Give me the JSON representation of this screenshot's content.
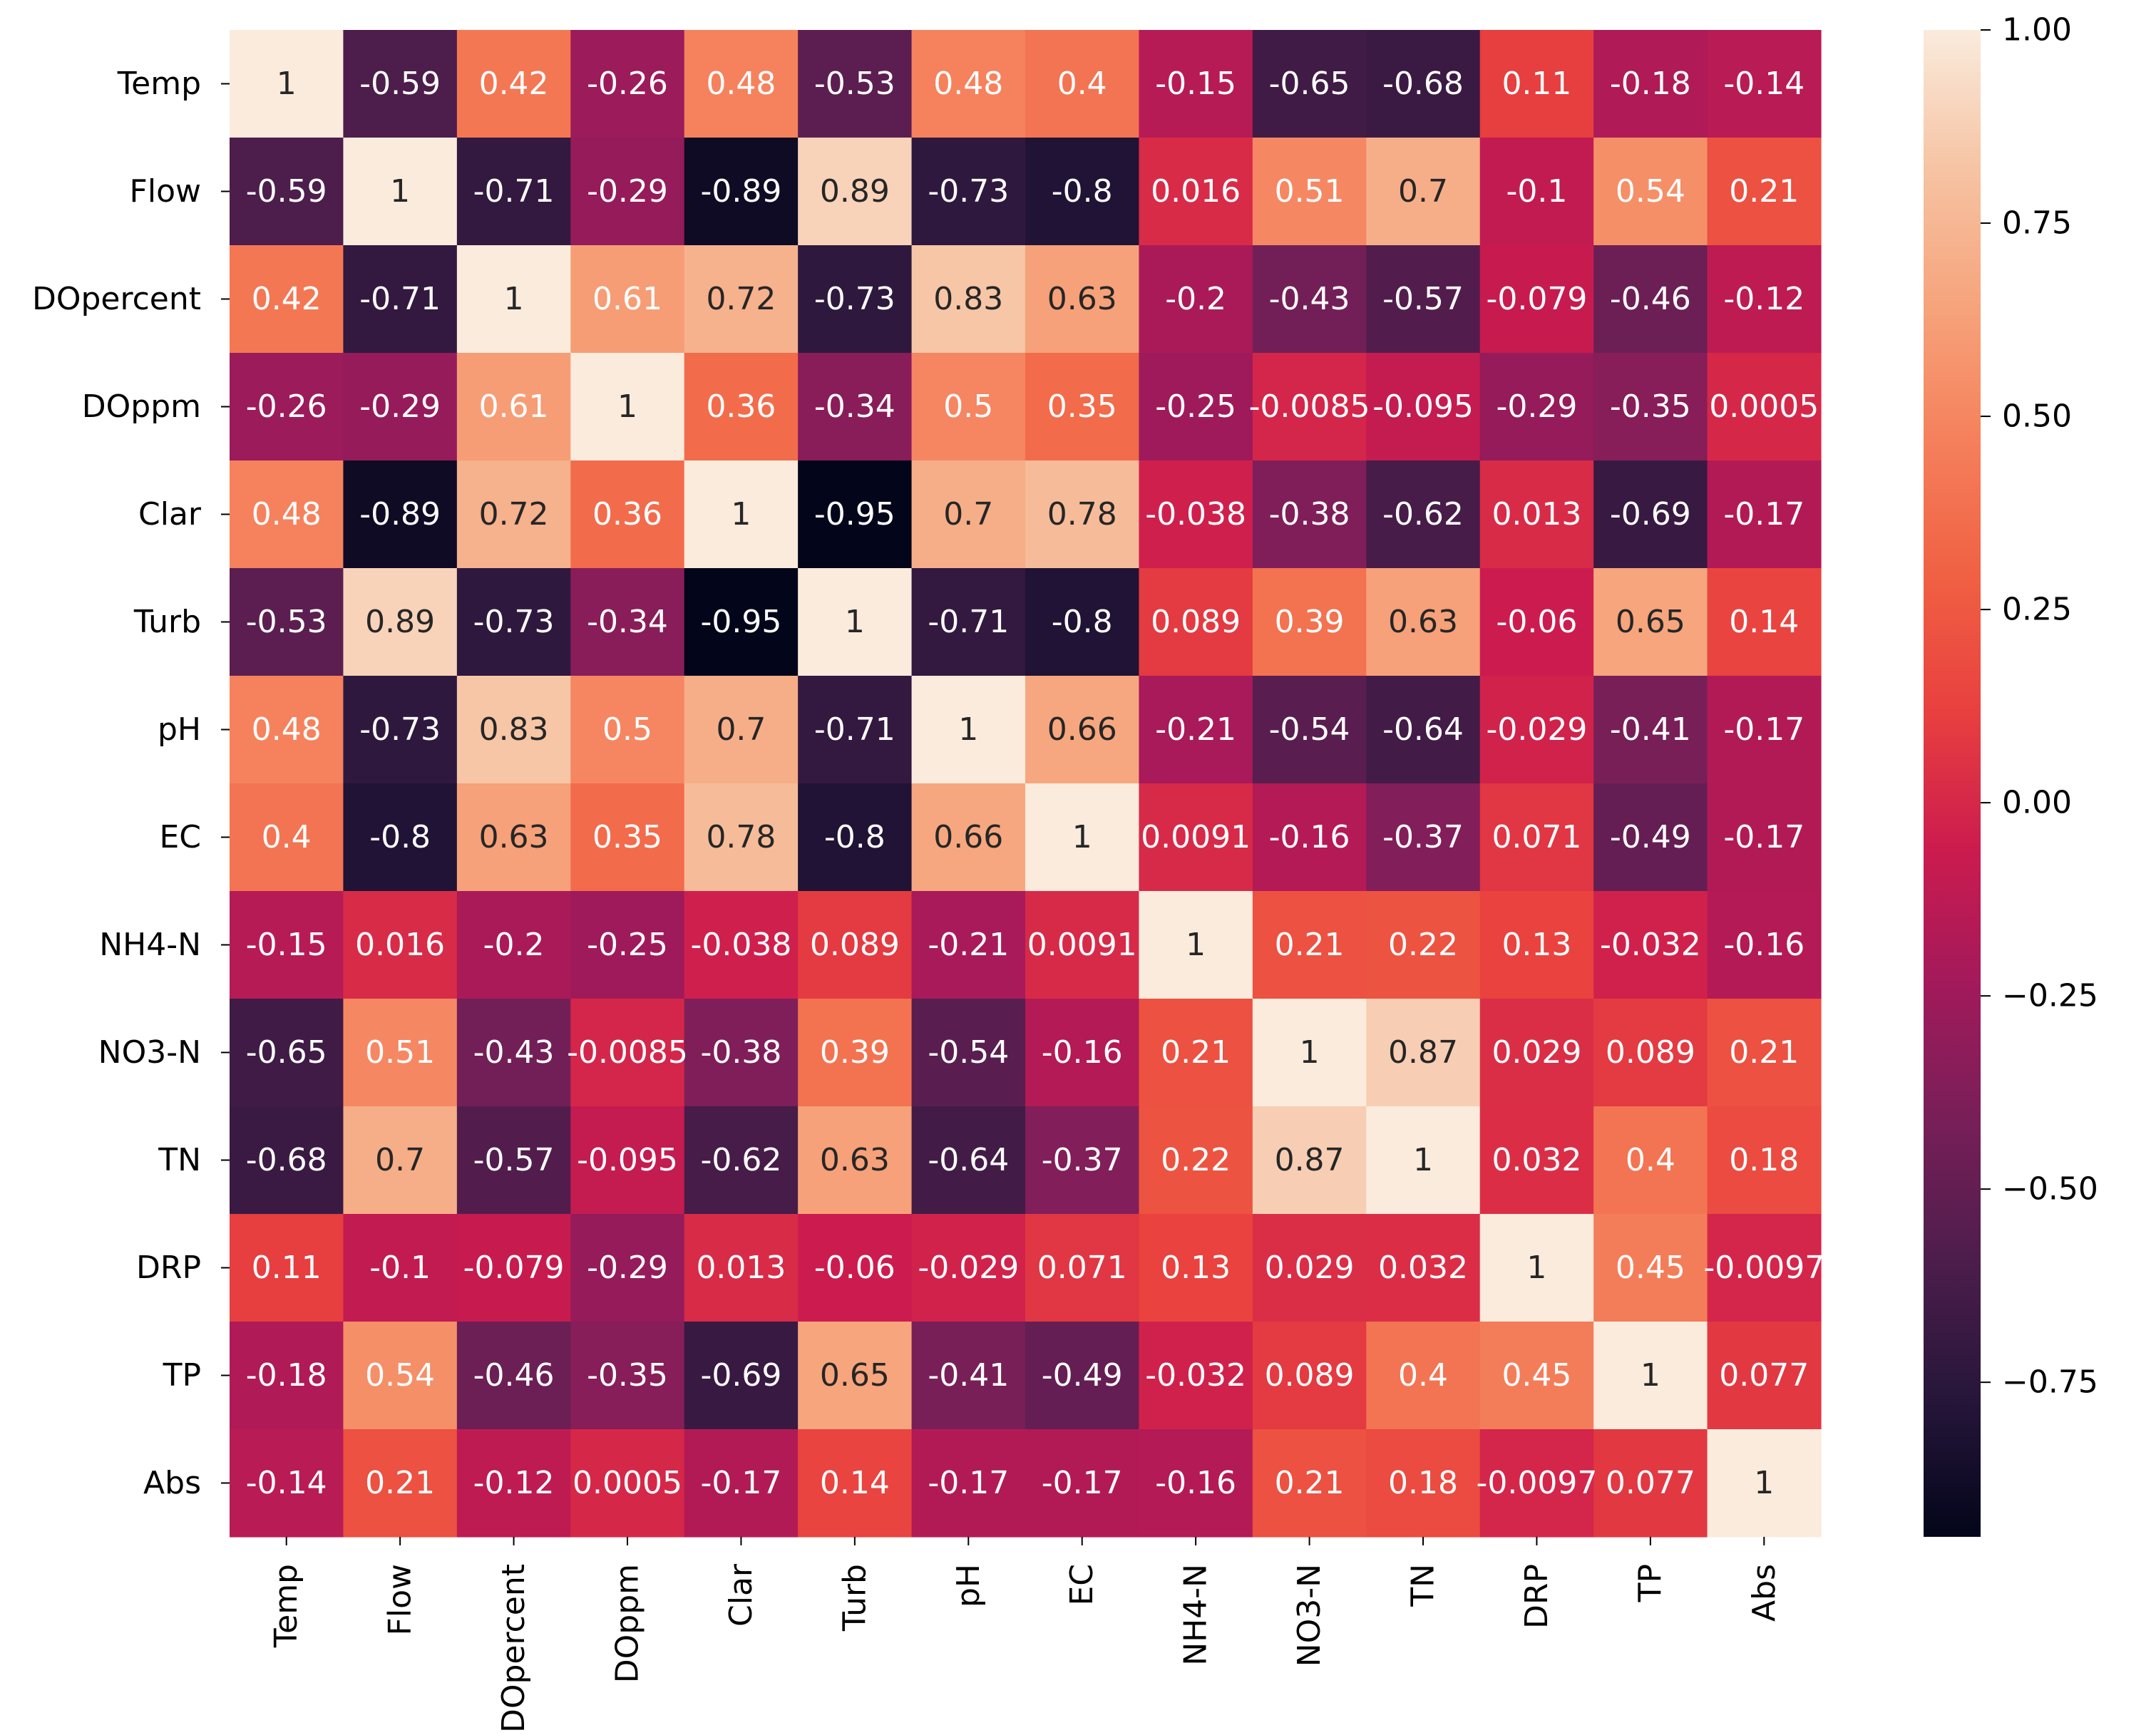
{
  "chart_data": {
    "type": "heatmap",
    "title": "",
    "xlabel": "",
    "ylabel": "",
    "variables": [
      "Temp",
      "Flow",
      "DOpercent",
      "DOppm",
      "Clar",
      "Turb",
      "pH",
      "EC",
      "NH4-N",
      "NO3-N",
      "TN",
      "DRP",
      "TP",
      "Abs"
    ],
    "row_labels": [
      "Temp",
      "Flow",
      "DOpercent",
      "DOppm",
      "Clar",
      "Turb",
      "pH",
      "EC",
      "NH4-N",
      "NO3-N",
      "TN",
      "DRP",
      "TP",
      "Abs"
    ],
    "col_labels": [
      "Temp",
      "Flow",
      "DOpercent",
      "DOppm",
      "Clar",
      "Turb",
      "pH",
      "EC",
      "NH4-N",
      "NO3-N",
      "TN",
      "DRP",
      "TP",
      "Abs"
    ],
    "values": [
      [
        1,
        -0.59,
        0.42,
        -0.26,
        0.48,
        -0.53,
        0.48,
        0.4,
        -0.15,
        -0.65,
        -0.68,
        0.11,
        -0.18,
        -0.14
      ],
      [
        -0.59,
        1,
        -0.71,
        -0.29,
        -0.89,
        0.89,
        -0.73,
        -0.8,
        0.016,
        0.51,
        0.7,
        -0.1,
        0.54,
        0.21
      ],
      [
        0.42,
        -0.71,
        1,
        0.61,
        0.72,
        -0.73,
        0.83,
        0.63,
        -0.2,
        -0.43,
        -0.57,
        -0.079,
        -0.46,
        -0.12
      ],
      [
        -0.26,
        -0.29,
        0.61,
        1,
        0.36,
        -0.34,
        0.5,
        0.35,
        -0.25,
        -0.0085,
        -0.095,
        -0.29,
        -0.35,
        0.0005
      ],
      [
        0.48,
        -0.89,
        0.72,
        0.36,
        1,
        -0.95,
        0.7,
        0.78,
        -0.038,
        -0.38,
        -0.62,
        0.013,
        -0.69,
        -0.17
      ],
      [
        -0.53,
        0.89,
        -0.73,
        -0.34,
        -0.95,
        1,
        -0.71,
        -0.8,
        0.089,
        0.39,
        0.63,
        -0.06,
        0.65,
        0.14
      ],
      [
        0.48,
        -0.73,
        0.83,
        0.5,
        0.7,
        -0.71,
        1,
        0.66,
        -0.21,
        -0.54,
        -0.64,
        -0.029,
        -0.41,
        -0.17
      ],
      [
        0.4,
        -0.8,
        0.63,
        0.35,
        0.78,
        -0.8,
        0.66,
        1,
        0.0091,
        -0.16,
        -0.37,
        0.071,
        -0.49,
        -0.17
      ],
      [
        -0.15,
        0.016,
        -0.2,
        -0.25,
        -0.038,
        0.089,
        -0.21,
        0.0091,
        1,
        0.21,
        0.22,
        0.13,
        -0.032,
        -0.16
      ],
      [
        -0.65,
        0.51,
        -0.43,
        -0.0085,
        -0.38,
        0.39,
        -0.54,
        -0.16,
        0.21,
        1,
        0.87,
        0.029,
        0.089,
        0.21
      ],
      [
        -0.68,
        0.7,
        -0.57,
        -0.095,
        -0.62,
        0.63,
        -0.64,
        -0.37,
        0.22,
        0.87,
        1,
        0.032,
        0.4,
        0.18
      ],
      [
        0.11,
        -0.1,
        -0.079,
        -0.29,
        0.013,
        -0.06,
        -0.029,
        0.071,
        0.13,
        0.029,
        0.032,
        1,
        0.45,
        -0.0097
      ],
      [
        -0.18,
        0.54,
        -0.46,
        -0.35,
        -0.69,
        0.65,
        -0.41,
        -0.49,
        -0.032,
        0.089,
        0.4,
        0.45,
        1,
        0.077
      ],
      [
        -0.14,
        0.21,
        -0.12,
        0.0005,
        -0.17,
        0.14,
        -0.17,
        -0.17,
        -0.16,
        0.21,
        0.18,
        -0.0097,
        0.077,
        1
      ]
    ],
    "cell_labels": [
      [
        "1",
        "-0.59",
        "0.42",
        "-0.26",
        "0.48",
        "-0.53",
        "0.48",
        "0.4",
        "-0.15",
        "-0.65",
        "-0.68",
        "0.11",
        "-0.18",
        "-0.14"
      ],
      [
        "-0.59",
        "1",
        "-0.71",
        "-0.29",
        "-0.89",
        "0.89",
        "-0.73",
        "-0.8",
        "0.016",
        "0.51",
        "0.7",
        "-0.1",
        "0.54",
        "0.21"
      ],
      [
        "0.42",
        "-0.71",
        "1",
        "0.61",
        "0.72",
        "-0.73",
        "0.83",
        "0.63",
        "-0.2",
        "-0.43",
        "-0.57",
        "-0.079",
        "-0.46",
        "-0.12"
      ],
      [
        "-0.26",
        "-0.29",
        "0.61",
        "1",
        "0.36",
        "-0.34",
        "0.5",
        "0.35",
        "-0.25",
        "-0.0085",
        "-0.095",
        "-0.29",
        "-0.35",
        "0.0005"
      ],
      [
        "0.48",
        "-0.89",
        "0.72",
        "0.36",
        "1",
        "-0.95",
        "0.7",
        "0.78",
        "-0.038",
        "-0.38",
        "-0.62",
        "0.013",
        "-0.69",
        "-0.17"
      ],
      [
        "-0.53",
        "0.89",
        "-0.73",
        "-0.34",
        "-0.95",
        "1",
        "-0.71",
        "-0.8",
        "0.089",
        "0.39",
        "0.63",
        "-0.06",
        "0.65",
        "0.14"
      ],
      [
        "0.48",
        "-0.73",
        "0.83",
        "0.5",
        "0.7",
        "-0.71",
        "1",
        "0.66",
        "-0.21",
        "-0.54",
        "-0.64",
        "-0.029",
        "-0.41",
        "-0.17"
      ],
      [
        "0.4",
        "-0.8",
        "0.63",
        "0.35",
        "0.78",
        "-0.8",
        "0.66",
        "1",
        "0.0091",
        "-0.16",
        "-0.37",
        "0.071",
        "-0.49",
        "-0.17"
      ],
      [
        "-0.15",
        "0.016",
        "-0.2",
        "-0.25",
        "-0.038",
        "0.089",
        "-0.21",
        "0.0091",
        "1",
        "0.21",
        "0.22",
        "0.13",
        "-0.032",
        "-0.16"
      ],
      [
        "-0.65",
        "0.51",
        "-0.43",
        "-0.0085",
        "-0.38",
        "0.39",
        "-0.54",
        "-0.16",
        "0.21",
        "1",
        "0.87",
        "0.029",
        "0.089",
        "0.21"
      ],
      [
        "-0.68",
        "0.7",
        "-0.57",
        "-0.095",
        "-0.62",
        "0.63",
        "-0.64",
        "-0.37",
        "0.22",
        "0.87",
        "1",
        "0.032",
        "0.4",
        "0.18"
      ],
      [
        "0.11",
        "-0.1",
        "-0.079",
        "-0.29",
        "0.013",
        "-0.06",
        "-0.029",
        "0.071",
        "0.13",
        "0.029",
        "0.032",
        "1",
        "0.45",
        "-0.0097"
      ],
      [
        "-0.18",
        "0.54",
        "-0.46",
        "-0.35",
        "-0.69",
        "0.65",
        "-0.41",
        "-0.49",
        "-0.032",
        "0.089",
        "0.4",
        "0.45",
        "1",
        "0.077"
      ],
      [
        "-0.14",
        "0.21",
        "-0.12",
        "0.0005",
        "-0.17",
        "0.14",
        "-0.17",
        "-0.17",
        "-0.16",
        "0.21",
        "0.18",
        "-0.0097",
        "0.077",
        "1"
      ]
    ],
    "colorbar": {
      "range": [
        -0.95,
        1.0
      ],
      "ticks": [
        1.0,
        0.75,
        0.5,
        0.25,
        0.0,
        -0.25,
        -0.5,
        -0.75
      ],
      "tick_labels": [
        "1.00",
        "0.75",
        "0.50",
        "0.25",
        "0.00",
        "−0.25",
        "−0.50",
        "−0.75"
      ]
    },
    "colormap": "rocket",
    "colormap_stops": [
      "#03051a",
      "#26163a",
      "#4c1d4b",
      "#761f58",
      "#a11a5b",
      "#cb1b4f",
      "#e83f3f",
      "#f06043",
      "#f5805b",
      "#f6a47c",
      "#f6c4a4",
      "#faebdd"
    ],
    "annotation_threshold": 0.5,
    "annotation_light_color": "#ffffff",
    "annotation_dark_color": "#262626"
  }
}
